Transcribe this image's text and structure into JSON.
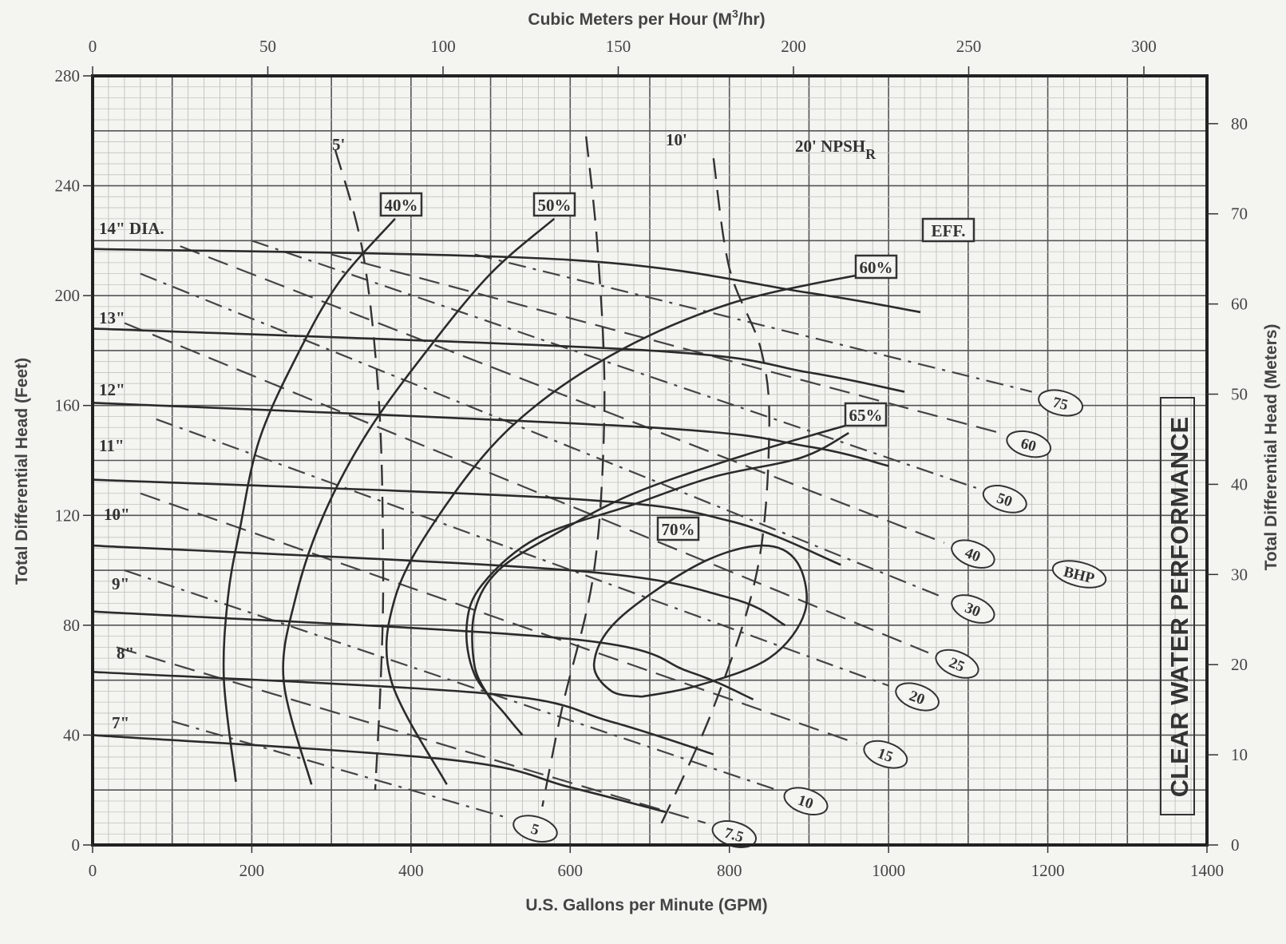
{
  "chart_data": {
    "type": "line",
    "title": "",
    "xlabel": "U.S. Gallons per Minute (GPM)",
    "ylabel": "Total Differential Head (Feet)",
    "x2label_main": "Cubic Meters per Hour (M",
    "x2label_sup": "3",
    "x2label_end": "/hr)",
    "y2label": "Total Differential Head (Meters)",
    "side_title": "CLEAR WATER PERFORMANCE",
    "bhp_tag": "BHP",
    "xlim": [
      0,
      1400
    ],
    "ylim": [
      0,
      280
    ],
    "x2lim": [
      0,
      318
    ],
    "y2lim": [
      0,
      85.3
    ],
    "x_ticks": [
      0,
      200,
      400,
      600,
      800,
      1000,
      1200,
      1400
    ],
    "y_ticks": [
      0,
      40,
      80,
      120,
      160,
      200,
      240,
      280
    ],
    "x2_ticks": [
      0,
      50,
      100,
      150,
      200,
      250,
      300
    ],
    "y2_ticks": [
      0,
      10,
      20,
      30,
      40,
      50,
      60,
      70,
      80
    ],
    "grid": "on",
    "impeller_curves": [
      {
        "name": "14\" DIA.",
        "points": [
          [
            0,
            217
          ],
          [
            600,
            213
          ],
          [
            900,
            201
          ],
          [
            1040,
            194
          ]
        ]
      },
      {
        "name": "13\"",
        "points": [
          [
            0,
            188
          ],
          [
            700,
            180
          ],
          [
            900,
            172
          ],
          [
            1020,
            165
          ]
        ]
      },
      {
        "name": "12\"",
        "points": [
          [
            0,
            161
          ],
          [
            700,
            152
          ],
          [
            900,
            145
          ],
          [
            1000,
            138
          ]
        ]
      },
      {
        "name": "11\"",
        "points": [
          [
            0,
            133
          ],
          [
            600,
            126
          ],
          [
            800,
            118
          ],
          [
            940,
            102
          ]
        ]
      },
      {
        "name": "10\"",
        "points": [
          [
            0,
            109
          ],
          [
            600,
            100
          ],
          [
            800,
            90
          ],
          [
            870,
            80
          ]
        ]
      },
      {
        "name": "9\"",
        "points": [
          [
            0,
            85
          ],
          [
            600,
            75
          ],
          [
            750,
            63
          ],
          [
            830,
            53
          ]
        ]
      },
      {
        "name": "8\"",
        "points": [
          [
            0,
            63
          ],
          [
            500,
            55
          ],
          [
            650,
            45
          ],
          [
            780,
            33
          ]
        ]
      },
      {
        "name": "7\"",
        "points": [
          [
            0,
            40
          ],
          [
            450,
            31
          ],
          [
            600,
            21
          ],
          [
            720,
            12
          ]
        ]
      }
    ],
    "efficiency_curves": [
      {
        "name": "40%",
        "points": [
          [
            180,
            23
          ],
          [
            165,
            60
          ],
          [
            170,
            90
          ],
          [
            185,
            115
          ],
          [
            210,
            148
          ],
          [
            260,
            180
          ],
          [
            310,
            205
          ],
          [
            380,
            228
          ]
        ]
      },
      {
        "name": "50%",
        "points": [
          [
            275,
            22
          ],
          [
            240,
            60
          ],
          [
            255,
            90
          ],
          [
            290,
            120
          ],
          [
            345,
            150
          ],
          [
            420,
            180
          ],
          [
            500,
            208
          ],
          [
            580,
            228
          ]
        ]
      },
      {
        "name": "60%",
        "points": [
          [
            445,
            22
          ],
          [
            375,
            60
          ],
          [
            380,
            90
          ],
          [
            435,
            120
          ],
          [
            525,
            152
          ],
          [
            650,
            178
          ],
          [
            800,
            197
          ],
          [
            970,
            208
          ]
        ]
      },
      {
        "name": "65%",
        "points": [
          [
            500,
            53
          ],
          [
            480,
            65
          ],
          [
            480,
            85
          ],
          [
            510,
            100
          ],
          [
            580,
            113
          ],
          [
            680,
            128
          ],
          [
            820,
            142
          ],
          [
            950,
            153
          ]
        ]
      }
    ],
    "bep_loop_70": {
      "name": "70%",
      "points": [
        [
          690,
          54
        ],
        [
          760,
          58
        ],
        [
          850,
          68
        ],
        [
          895,
          85
        ],
        [
          885,
          103
        ],
        [
          840,
          109
        ],
        [
          760,
          102
        ],
        [
          660,
          82
        ],
        [
          630,
          66
        ],
        [
          652,
          56
        ],
        [
          690,
          54
        ]
      ]
    },
    "loop_65": {
      "name": "65%",
      "points": [
        [
          540,
          40
        ],
        [
          520,
          47
        ],
        [
          480,
          62
        ],
        [
          470,
          80
        ],
        [
          490,
          95
        ],
        [
          560,
          112
        ],
        [
          680,
          124
        ],
        [
          780,
          134
        ],
        [
          890,
          141
        ],
        [
          950,
          150
        ]
      ]
    },
    "npshr_curves": [
      {
        "name": "5'",
        "points": [
          [
            305,
            253
          ],
          [
            340,
            215
          ],
          [
            360,
            160
          ],
          [
            365,
            100
          ],
          [
            362,
            60
          ],
          [
            355,
            20
          ]
        ]
      },
      {
        "name": "10'",
        "points": [
          [
            620,
            258
          ],
          [
            635,
            215
          ],
          [
            643,
            160
          ],
          [
            630,
            100
          ],
          [
            590,
            50
          ],
          [
            565,
            14
          ]
        ]
      },
      {
        "name": "20' NPSH",
        "sub": "R",
        "points": [
          [
            780,
            250
          ],
          [
            800,
            210
          ],
          [
            840,
            180
          ],
          [
            850,
            150
          ],
          [
            835,
            100
          ],
          [
            780,
            50
          ],
          [
            710,
            5
          ]
        ]
      }
    ],
    "bhp_lines": [
      {
        "name": "5",
        "points": [
          [
            100,
            45
          ],
          [
            520,
            10
          ]
        ]
      },
      {
        "name": "7.5",
        "points": [
          [
            30,
            72
          ],
          [
            770,
            8
          ]
        ]
      },
      {
        "name": "10",
        "points": [
          [
            40,
            100
          ],
          [
            860,
            20
          ]
        ]
      },
      {
        "name": "15",
        "points": [
          [
            60,
            128
          ],
          [
            960,
            37
          ]
        ]
      },
      {
        "name": "20",
        "points": [
          [
            80,
            155
          ],
          [
            1000,
            58
          ]
        ]
      },
      {
        "name": "25",
        "points": [
          [
            40,
            190
          ],
          [
            1050,
            70
          ]
        ]
      },
      {
        "name": "30",
        "points": [
          [
            60,
            208
          ],
          [
            1070,
            90
          ]
        ]
      },
      {
        "name": "40",
        "points": [
          [
            110,
            218
          ],
          [
            1070,
            110
          ]
        ]
      },
      {
        "name": "50",
        "points": [
          [
            200,
            220
          ],
          [
            1110,
            130
          ]
        ]
      },
      {
        "name": "60",
        "points": [
          [
            300,
            215
          ],
          [
            1140,
            150
          ]
        ]
      },
      {
        "name": "75",
        "points": [
          [
            480,
            215
          ],
          [
            1180,
            165
          ]
        ]
      }
    ],
    "labels": {
      "eff": "EFF.",
      "diameters": [
        "14\" DIA.",
        "13\"",
        "12\"",
        "11\"",
        "10\"",
        "9\"",
        "8\"",
        "7\""
      ],
      "efficiencies": [
        "40%",
        "50%",
        "60%",
        "65%",
        "70%"
      ],
      "npsh": [
        "5'",
        "10'",
        "20' NPSH"
      ],
      "npsh_sub": "R",
      "bhp_values": [
        "5",
        "7.5",
        "10",
        "15",
        "20",
        "25",
        "30",
        "40",
        "50",
        "60",
        "75"
      ]
    }
  }
}
